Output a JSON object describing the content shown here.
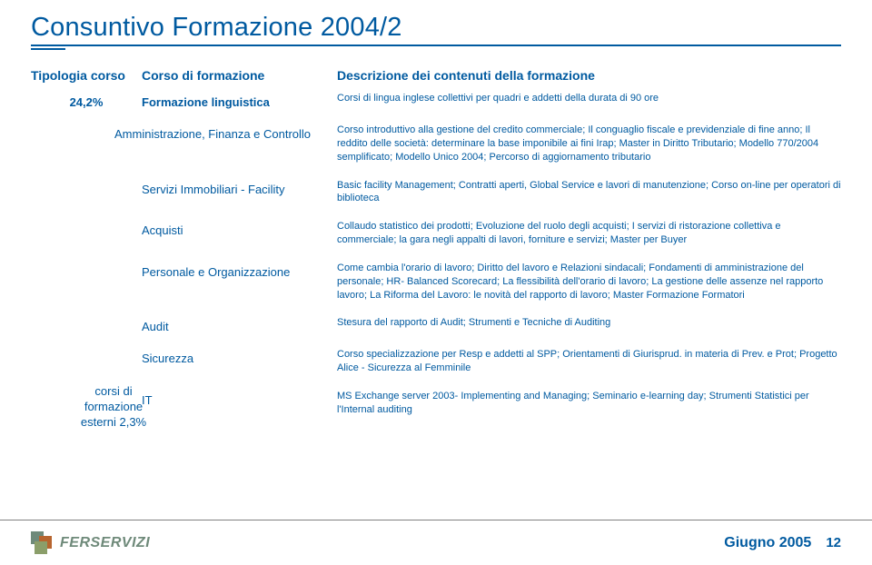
{
  "colors": {
    "primary": "#005aa0",
    "footer_rule": "#808080",
    "logo_a": "#6f8a7a",
    "logo_b": "#b7652f",
    "logo_c": "#8b9e6a",
    "background": "#ffffff"
  },
  "typography": {
    "title_size": 29,
    "header_size": 14,
    "body_size": 11,
    "label_size": 13
  },
  "title": "Consuntivo Formazione 2004/2",
  "headers": {
    "col1": "Tipologia corso",
    "col2": "Corso di formazione",
    "col3": "Descrizione dei contenuti della formazione"
  },
  "group_label": "corsi di formazione esterni 2,3%",
  "rows": [
    {
      "pct": "24,2%",
      "course": "Formazione linguistica",
      "desc": "Corsi di lingua inglese collettivi per quadri e addetti della durata di 90 ore"
    },
    {
      "pct": "",
      "course": "Amministrazione, Finanza e Controllo",
      "desc": "Corso introduttivo alla gestione del credito commerciale; Il conguaglio fiscale e previdenziale di fine anno; Il reddito delle società: determinare la base imponibile ai fini Irap; Master in Diritto Tributario; Modello 770/2004 semplificato; Modello Unico 2004; Percorso di aggiornamento tributario"
    },
    {
      "pct": "",
      "course": "Servizi Immobiliari - Facility",
      "desc": "Basic facility Management; Contratti aperti, Global Service e lavori di manutenzione; Corso on-line per operatori di biblioteca"
    },
    {
      "pct": "",
      "course": "Acquisti",
      "desc": "Collaudo statistico dei prodotti; Evoluzione del ruolo degli acquisti; I servizi di ristorazione collettiva e commerciale; la gara negli appalti di lavori, forniture e servizi; Master per Buyer"
    },
    {
      "pct": "",
      "course": "Personale e Organizzazione",
      "desc": "Come cambia l'orario di lavoro; Diritto del lavoro e Relazioni sindacali; Fondamenti di amministrazione del personale; HR- Balanced Scorecard; La flessibilità dell'orario di lavoro; La gestione delle assenze nel rapporto lavoro; La Riforma del Lavoro: le novità del rapporto di lavoro; Master Formazione Formatori"
    },
    {
      "pct": "",
      "course": "Audit",
      "desc": "Stesura del rapporto di Audit; Strumenti e Tecniche di Auditing"
    },
    {
      "pct": "",
      "course": "Sicurezza",
      "desc": "Corso specializzazione per Resp e addetti al SPP; Orientamenti di Giurisprud. in materia di Prev. e Prot; Progetto Alice - Sicurezza al Femminile"
    },
    {
      "pct": "",
      "course": "IT",
      "desc": "MS Exchange server 2003- Implementing and Managing; Seminario e-learning day; Strumenti Statistici per l'Internal auditing"
    }
  ],
  "footer": {
    "brand": "FERSERVIZI",
    "date": "Giugno 2005",
    "page": "12"
  }
}
